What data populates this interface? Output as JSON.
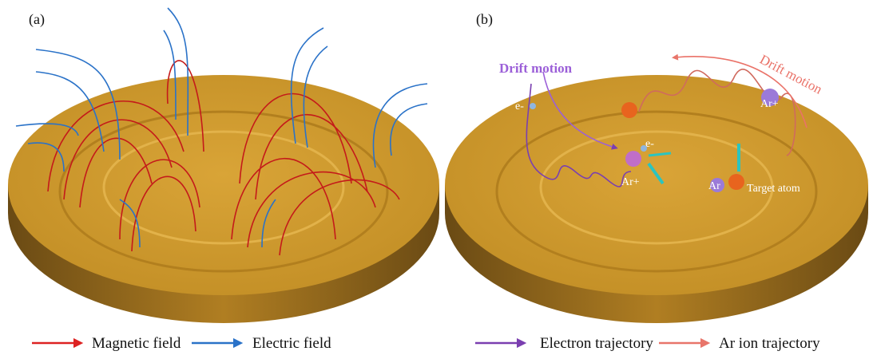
{
  "panels": [
    {
      "label": "(a)",
      "legend": [
        "Magnetic field",
        "Electric field"
      ]
    },
    {
      "label": "(b)",
      "annotations": [
        "Drift motion",
        "Drift motion",
        "e-",
        "e-",
        "Ar+",
        "Ar+",
        "Ar",
        "Target atom"
      ],
      "legend": [
        "Electron trajectory",
        "Ar ion trajectory"
      ]
    }
  ]
}
